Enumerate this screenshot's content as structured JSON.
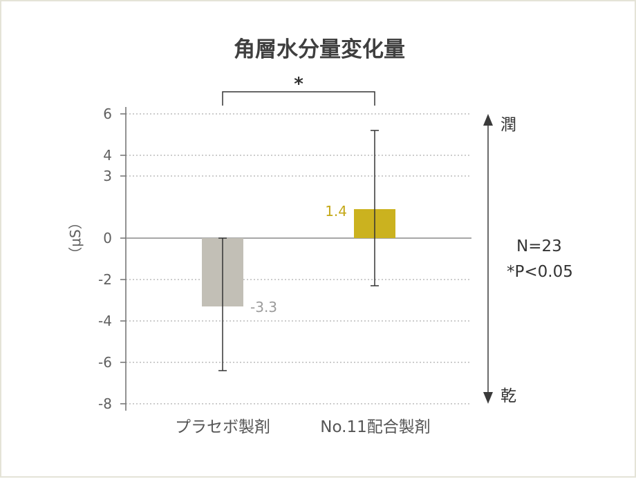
{
  "chart_data": {
    "type": "bar",
    "title": "角層水分量変化量",
    "ylabel": "（μS）",
    "ylim": [
      -8,
      6
    ],
    "yticks": [
      6,
      4,
      3,
      0,
      -2,
      -4,
      -6,
      -8
    ],
    "grid": true,
    "categories": [
      "プラセボ製剤",
      "No.11配合製剤"
    ],
    "values": [
      -3.3,
      1.4
    ],
    "value_labels": [
      "-3.3",
      "1.4"
    ],
    "error_bars": [
      {
        "low": -6.4,
        "high": 0.0
      },
      {
        "low": -2.3,
        "high": 5.2
      }
    ],
    "bar_colors": [
      "#c2bfb6",
      "#cbb21f"
    ],
    "label_colors": [
      "#9b9b9b",
      "#c4a817"
    ],
    "significance": {
      "between": [
        0,
        1
      ],
      "marker": "*"
    },
    "annotations": {
      "n": "N=23",
      "p": "*P<0.05"
    },
    "side_axis": {
      "top": "潤",
      "bottom": "乾"
    }
  }
}
